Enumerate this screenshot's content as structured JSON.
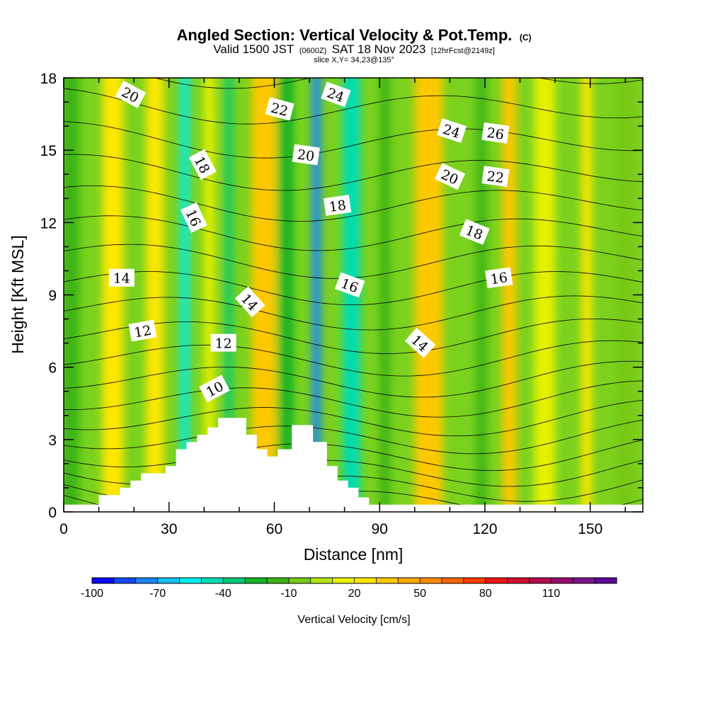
{
  "chart_data": {
    "type": "heatmap",
    "title": "Angled Section: Vertical Velocity & Pot.Temp.",
    "title_mark": "(C)",
    "subtitle_parts": [
      "Valid 1500 JST",
      "(0600Z)",
      "SAT 18 Nov 2023",
      "[12hrFcst@2149z]"
    ],
    "slice_text": "slice X,Y= 34,23@135°",
    "xlabel": "Distance [nm]",
    "ylabel": "Height [Kft MSL]",
    "xlim": [
      0,
      165
    ],
    "ylim": [
      0,
      18
    ],
    "xticks": [
      0,
      30,
      60,
      90,
      120,
      150
    ],
    "yticks": [
      0,
      3,
      6,
      9,
      12,
      15,
      18
    ],
    "colorbar": {
      "title": "Vertical Velocity [cm/s]",
      "min": -100,
      "max": 140,
      "step": 10,
      "labels": [
        -100,
        -70,
        -40,
        -10,
        20,
        50,
        80,
        110
      ],
      "colors": [
        "#0a0af5",
        "#1448f5",
        "#1e84f5",
        "#14bef0",
        "#00ecec",
        "#00dcb4",
        "#00c878",
        "#14b428",
        "#3cb414",
        "#78c814",
        "#b4e614",
        "#e6f000",
        "#ffe600",
        "#ffc800",
        "#ffaa00",
        "#ff8c00",
        "#ff6400",
        "#ff3c00",
        "#eb1414",
        "#d20a32",
        "#b40a50",
        "#960a6e",
        "#78148c",
        "#5a0a96"
      ]
    },
    "vertical_velocity_bands": [
      {
        "x": 2,
        "w": 5,
        "value": -20
      },
      {
        "x": 14,
        "w": 6,
        "value": 25
      },
      {
        "x": 26,
        "w": 5,
        "value": 20
      },
      {
        "x": 34.5,
        "w": 2.5,
        "value": -60
      },
      {
        "x": 41.5,
        "w": 3,
        "value": 18
      },
      {
        "x": 47,
        "w": 2,
        "value": -40
      },
      {
        "x": 57,
        "w": 7,
        "value": 35
      },
      {
        "x": 63.5,
        "w": 4,
        "value": -25
      },
      {
        "x": 72,
        "w": 2.5,
        "value": -75
      },
      {
        "x": 82,
        "w": 5,
        "value": -45
      },
      {
        "x": 91.5,
        "w": 3,
        "value": -20
      },
      {
        "x": 104,
        "w": 8,
        "value": 35
      },
      {
        "x": 119,
        "w": 3,
        "value": -15
      },
      {
        "x": 127,
        "w": 4,
        "value": 30
      },
      {
        "x": 137,
        "w": 6,
        "value": 12
      },
      {
        "x": 149,
        "w": 3,
        "value": 25
      },
      {
        "x": 160,
        "w": 5,
        "value": -10
      }
    ],
    "terrain": [
      [
        0,
        0.3
      ],
      [
        10,
        0.3
      ],
      [
        10,
        0.7
      ],
      [
        16,
        0.7
      ],
      [
        16,
        1.0
      ],
      [
        19,
        1.0
      ],
      [
        19,
        1.3
      ],
      [
        22,
        1.3
      ],
      [
        22,
        1.6
      ],
      [
        29,
        1.6
      ],
      [
        29,
        1.9
      ],
      [
        32,
        1.9
      ],
      [
        32,
        2.6
      ],
      [
        35,
        2.6
      ],
      [
        35,
        2.9
      ],
      [
        38,
        2.9
      ],
      [
        38,
        3.2
      ],
      [
        41,
        3.2
      ],
      [
        41,
        3.5
      ],
      [
        44,
        3.5
      ],
      [
        44,
        3.9
      ],
      [
        52,
        3.9
      ],
      [
        52,
        3.2
      ],
      [
        55,
        3.2
      ],
      [
        55,
        2.6
      ],
      [
        58,
        2.6
      ],
      [
        58,
        2.3
      ],
      [
        61,
        2.3
      ],
      [
        61,
        2.6
      ],
      [
        65,
        2.6
      ],
      [
        65,
        3.6
      ],
      [
        71,
        3.6
      ],
      [
        71,
        2.9
      ],
      [
        75,
        2.9
      ],
      [
        75,
        1.9
      ],
      [
        78,
        1.9
      ],
      [
        78,
        1.3
      ],
      [
        81,
        1.3
      ],
      [
        81,
        1.0
      ],
      [
        84,
        1.0
      ],
      [
        84,
        0.6
      ],
      [
        87,
        0.6
      ],
      [
        87,
        0.3
      ],
      [
        165,
        0.3
      ]
    ],
    "theta_levels": [
      8,
      9,
      10,
      11,
      12,
      13,
      14,
      15,
      16,
      17,
      18,
      19,
      20,
      21,
      22,
      23,
      24,
      25,
      26,
      27,
      28
    ],
    "contour_labels": [
      {
        "text": "20",
        "x": 19,
        "y": 17.3,
        "angle": 28
      },
      {
        "text": "22",
        "x": 61.5,
        "y": 16.7,
        "angle": 15
      },
      {
        "text": "24",
        "x": 77.5,
        "y": 17.3,
        "angle": 20
      },
      {
        "text": "20",
        "x": 69,
        "y": 14.8,
        "angle": 8
      },
      {
        "text": "24",
        "x": 110.5,
        "y": 15.8,
        "angle": 18
      },
      {
        "text": "26",
        "x": 123,
        "y": 15.7,
        "angle": 8
      },
      {
        "text": "18",
        "x": 39.5,
        "y": 14.4,
        "angle": 62
      },
      {
        "text": "20",
        "x": 110,
        "y": 13.9,
        "angle": 25
      },
      {
        "text": "22",
        "x": 123,
        "y": 13.9,
        "angle": 8
      },
      {
        "text": "18",
        "x": 78,
        "y": 12.7,
        "angle": -8
      },
      {
        "text": "16",
        "x": 37,
        "y": 12.2,
        "angle": 65
      },
      {
        "text": "18",
        "x": 117,
        "y": 11.6,
        "angle": 22
      },
      {
        "text": "14",
        "x": 16.5,
        "y": 9.7,
        "angle": 0
      },
      {
        "text": "16",
        "x": 81.5,
        "y": 9.4,
        "angle": 20
      },
      {
        "text": "16",
        "x": 124,
        "y": 9.7,
        "angle": -8
      },
      {
        "text": "14",
        "x": 53,
        "y": 8.7,
        "angle": 48
      },
      {
        "text": "12",
        "x": 22.5,
        "y": 7.5,
        "angle": -10
      },
      {
        "text": "12",
        "x": 45.5,
        "y": 7.0,
        "angle": 0
      },
      {
        "text": "14",
        "x": 101.5,
        "y": 7.0,
        "angle": 42
      },
      {
        "text": "10",
        "x": 43,
        "y": 5.1,
        "angle": -28
      }
    ]
  }
}
